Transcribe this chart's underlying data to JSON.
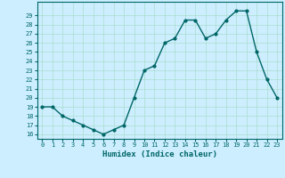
{
  "x": [
    0,
    1,
    2,
    3,
    4,
    5,
    6,
    7,
    8,
    9,
    10,
    11,
    12,
    13,
    14,
    15,
    16,
    17,
    18,
    19,
    20,
    21,
    22,
    23
  ],
  "y": [
    19,
    19,
    18,
    17.5,
    17,
    16.5,
    16,
    16.5,
    17,
    20,
    23,
    23.5,
    26,
    26.5,
    28.5,
    28.5,
    26.5,
    27,
    28.5,
    29.5,
    29.5,
    25,
    22,
    20
  ],
  "xlabel": "Humidex (Indice chaleur)",
  "xlim": [
    -0.5,
    23.5
  ],
  "ylim": [
    15.5,
    30.5
  ],
  "yticks": [
    16,
    17,
    18,
    19,
    20,
    21,
    22,
    23,
    24,
    25,
    26,
    27,
    28,
    29
  ],
  "xticks": [
    0,
    1,
    2,
    3,
    4,
    5,
    6,
    7,
    8,
    9,
    10,
    11,
    12,
    13,
    14,
    15,
    16,
    17,
    18,
    19,
    20,
    21,
    22,
    23
  ],
  "line_color": "#006666",
  "marker_color": "#006666",
  "bg_color": "#cceeff",
  "grid_color": "#aaddcc",
  "label_color": "#006666"
}
